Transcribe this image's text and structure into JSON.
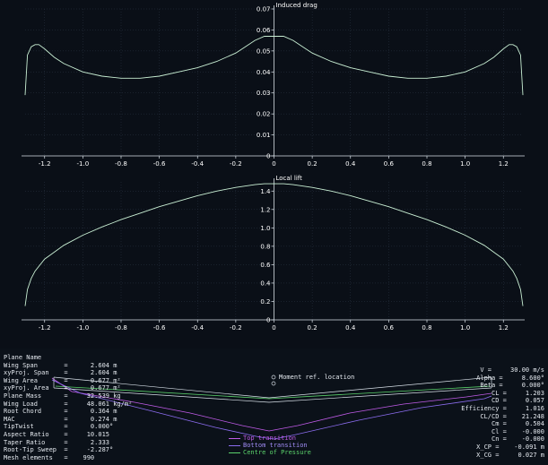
{
  "colors": {
    "background": "#0a0f17",
    "curve": "#c9efd4",
    "axis": "#d8e0e8",
    "grid": "#2b3645",
    "top_transition": "#c05be8",
    "bottom_transition": "#8c6df0",
    "centre_of_pressure": "#5bd26b",
    "label": "#ffffff"
  },
  "chart_data": [
    {
      "type": "line",
      "title": "Induced drag",
      "xlim": [
        -1.302,
        1.302
      ],
      "ylim": [
        0,
        0.07
      ],
      "xticks": [
        "-1.2",
        "-1.0",
        "-0.8",
        "-0.6",
        "-0.4",
        "-0.2",
        "0",
        "0.2",
        "0.4",
        "0.6",
        "0.8",
        "1.0",
        "1.2"
      ],
      "yticks": [
        "0",
        "0.01",
        "0.02",
        "0.03",
        "0.04",
        "0.05",
        "0.06",
        "0.07"
      ],
      "grid": true,
      "series": [
        {
          "x": [
            -1.302,
            -1.29,
            -1.27,
            -1.25,
            -1.23,
            -1.2,
            -1.15,
            -1.1,
            -1.0,
            -0.9,
            -0.8,
            -0.7,
            -0.6,
            -0.5,
            -0.4,
            -0.3,
            -0.2,
            -0.15,
            -0.1,
            -0.05,
            0,
            0.05,
            0.1,
            0.15,
            0.2,
            0.3,
            0.4,
            0.5,
            0.6,
            0.7,
            0.8,
            0.9,
            1.0,
            1.1,
            1.15,
            1.2,
            1.23,
            1.25,
            1.27,
            1.29,
            1.302
          ],
          "y": [
            0.029,
            0.048,
            0.052,
            0.053,
            0.053,
            0.051,
            0.047,
            0.044,
            0.04,
            0.038,
            0.037,
            0.037,
            0.038,
            0.04,
            0.042,
            0.045,
            0.049,
            0.052,
            0.055,
            0.057,
            0.057,
            0.057,
            0.055,
            0.052,
            0.049,
            0.045,
            0.042,
            0.04,
            0.038,
            0.037,
            0.037,
            0.038,
            0.04,
            0.044,
            0.047,
            0.051,
            0.053,
            0.053,
            0.052,
            0.048,
            0.029
          ]
        }
      ]
    },
    {
      "type": "line",
      "title": "Local lift",
      "xlim": [
        -1.302,
        1.302
      ],
      "ylim": [
        0,
        1.5
      ],
      "xticks": [
        "-1.2",
        "-1.0",
        "-0.8",
        "-0.6",
        "-0.4",
        "-0.2",
        "0",
        "0.2",
        "0.4",
        "0.6",
        "0.8",
        "1.0",
        "1.2"
      ],
      "yticks": [
        "0",
        "0.2",
        "0.4",
        "0.6",
        "0.8",
        "1.0",
        "1.2",
        "1.4"
      ],
      "grid": true,
      "series": [
        {
          "x": [
            -1.302,
            -1.29,
            -1.27,
            -1.25,
            -1.2,
            -1.1,
            -1.0,
            -0.9,
            -0.8,
            -0.7,
            -0.6,
            -0.5,
            -0.4,
            -0.3,
            -0.2,
            -0.1,
            -0.05,
            0,
            0.05,
            0.1,
            0.2,
            0.3,
            0.4,
            0.5,
            0.6,
            0.7,
            0.8,
            0.9,
            1.0,
            1.1,
            1.2,
            1.25,
            1.27,
            1.29,
            1.302
          ],
          "y": [
            0.15,
            0.33,
            0.45,
            0.53,
            0.66,
            0.81,
            0.92,
            1.01,
            1.09,
            1.16,
            1.23,
            1.29,
            1.35,
            1.4,
            1.44,
            1.47,
            1.48,
            1.48,
            1.48,
            1.47,
            1.44,
            1.4,
            1.35,
            1.29,
            1.23,
            1.16,
            1.09,
            1.01,
            0.92,
            0.81,
            0.66,
            0.53,
            0.45,
            0.33,
            0.15
          ]
        }
      ]
    }
  ],
  "plane_info": {
    "lines": [
      "Plane Name",
      "Wing Span       =      2.604 m",
      "xyProj. Span    =      2.604 m",
      "Wing Area       =      0.677 m²",
      "xyProj. Area    =      0.677 m²",
      "Plane Mass      =     32.539 kg",
      "Wing Load       =     48.061 kg/m²",
      "Root Chord      =      0.364 m",
      "MAC             =      0.274 m",
      "TipTwist        =      0.000°",
      "Aspect Ratio    =     10.015",
      "Taper Ratio     =      2.333",
      "Root-Tip Sweep  =     -2.287°",
      "Mesh elements   =    990"
    ]
  },
  "aero_info": {
    "lines": [
      "V =     30.00 m/s",
      "Alpha =     8.600°",
      "Beta =     0.000°",
      "CL =     1.203",
      "CD =     0.057",
      "Efficiency =     1.016",
      "CL/CD =    21.248",
      "Cm =     0.504",
      "Cl =    -0.000",
      "Cn =    -0.000",
      "X_CP =    -0.091 m",
      "X_CG =     0.027 m"
    ]
  },
  "moment_ref": {
    "label": "Moment ref. location"
  },
  "legend": {
    "top_transition": "Top transition",
    "bottom_transition": "Bottom transition",
    "centre_of_pressure": "Centre of Pressure"
  }
}
